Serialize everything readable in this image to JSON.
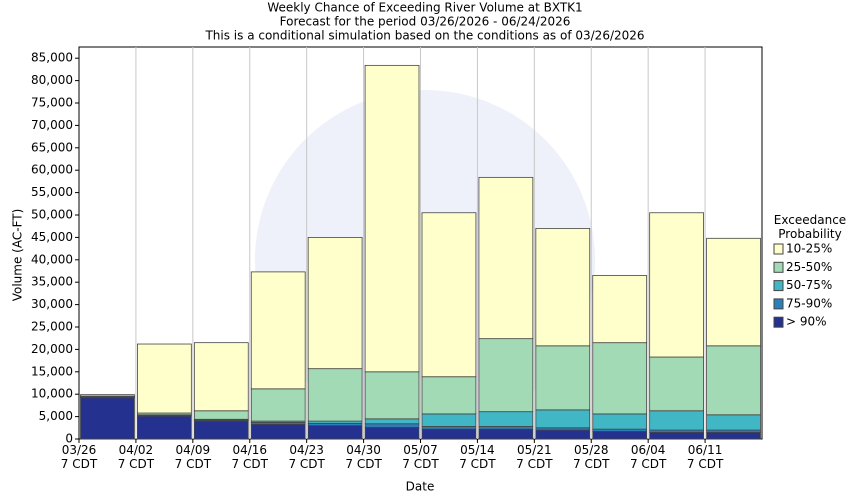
{
  "chart_data": {
    "type": "stacked_bar",
    "title": "Weekly Chance of Exceeding River Volume at BXTK1",
    "subtitle": "Forecast for the period 03/26/2026 - 06/24/2026",
    "subtitle2": "This is a conditional simulation based on the conditions as of 03/26/2026",
    "x_label": "Date",
    "y_label": "Volume (AC-FT)",
    "legend_title": "Exceedance\nProbability",
    "categories": [
      "03/26\n7 CDT",
      "04/02\n7 CDT",
      "04/09\n7 CDT",
      "04/16\n7 CDT",
      "04/23\n7 CDT",
      "04/30\n7 CDT",
      "05/07\n7 CDT",
      "05/14\n7 CDT",
      "05/21\n7 CDT",
      "05/28\n7 CDT",
      "06/04\n7 CDT",
      "06/11\n7 CDT"
    ],
    "series": [
      {
        "name": "> 90%",
        "color": "#24318f",
        "values": [
          9200,
          5100,
          4000,
          3300,
          3000,
          2600,
          2200,
          2200,
          2000,
          1700,
          1500,
          1500
        ]
      },
      {
        "name": "75-90%",
        "color": "#2c7fb8",
        "values": [
          100,
          200,
          200,
          400,
          500,
          800,
          600,
          600,
          500,
          500,
          500,
          500
        ]
      },
      {
        "name": "50-75%",
        "color": "#41b6c4",
        "values": [
          100,
          100,
          200,
          300,
          500,
          1100,
          2800,
          3300,
          4000,
          3400,
          4300,
          3400
        ]
      },
      {
        "name": "25-50%",
        "color": "#a1dab4",
        "values": [
          200,
          400,
          1900,
          7200,
          11700,
          10500,
          8300,
          16300,
          14300,
          15900,
          12000,
          15400
        ]
      },
      {
        "name": "10-25%",
        "color": "#ffffcc",
        "values": [
          300,
          15400,
          15200,
          26100,
          29300,
          68400,
          36600,
          36000,
          26200,
          15000,
          32200,
          24000
        ]
      }
    ],
    "ylim": [
      0,
      87500
    ],
    "yticks": [
      0,
      {
        "value": 5000,
        "label": "5,000"
      },
      {
        "value": 10000,
        "label": "10,000"
      },
      {
        "value": 15000,
        "label": "15,000"
      },
      {
        "value": 20000,
        "label": "20,000"
      },
      {
        "value": 25000,
        "label": "25,000"
      },
      {
        "value": 30000,
        "label": "30,000"
      },
      {
        "value": 35000,
        "label": "35,000"
      },
      {
        "value": 40000,
        "label": "40,000"
      },
      {
        "value": 45000,
        "label": "45,000"
      },
      {
        "value": 50000,
        "label": "50,000"
      },
      {
        "value": 55000,
        "label": "55,000"
      },
      {
        "value": 60000,
        "label": "60,000"
      },
      {
        "value": 65000,
        "label": "65,000"
      },
      {
        "value": 70000,
        "label": "70,000"
      },
      {
        "value": 75000,
        "label": "75,000"
      },
      {
        "value": 80000,
        "label": "80,000"
      },
      {
        "value": 85000,
        "label": "85,000"
      }
    ],
    "grid": "x",
    "legend_position": "right"
  }
}
